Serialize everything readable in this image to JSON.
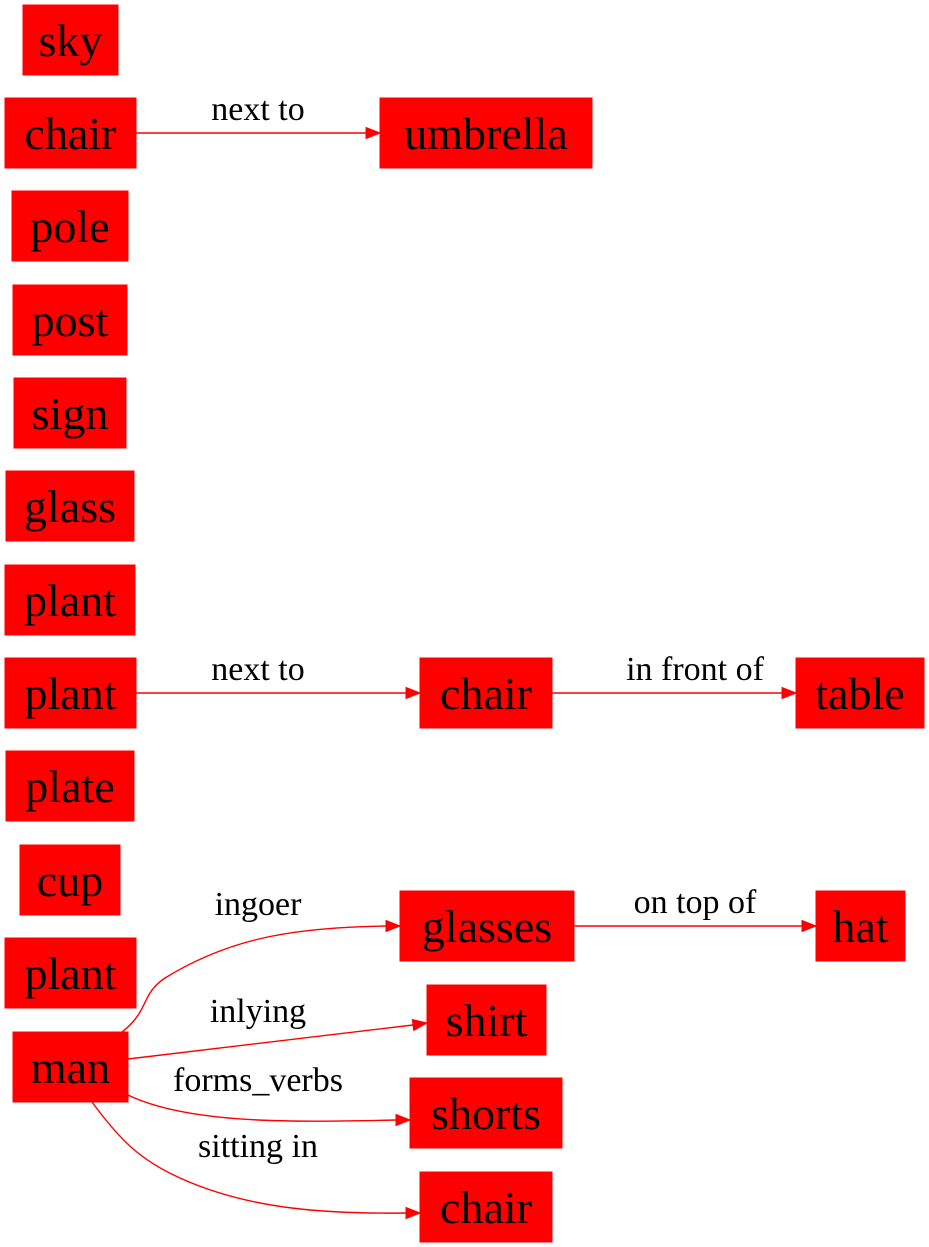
{
  "graph": {
    "nodes": [
      {
        "id": "n0",
        "label": "sky"
      },
      {
        "id": "n1",
        "label": "chair"
      },
      {
        "id": "n2",
        "label": "umbrella"
      },
      {
        "id": "n3",
        "label": "pole"
      },
      {
        "id": "n4",
        "label": "post"
      },
      {
        "id": "n5",
        "label": "sign"
      },
      {
        "id": "n6",
        "label": "glass"
      },
      {
        "id": "n7",
        "label": "plant"
      },
      {
        "id": "n8",
        "label": "plant"
      },
      {
        "id": "n9",
        "label": "chair"
      },
      {
        "id": "n10",
        "label": "table"
      },
      {
        "id": "n11",
        "label": "plate"
      },
      {
        "id": "n12",
        "label": "cup"
      },
      {
        "id": "n13",
        "label": "glasses"
      },
      {
        "id": "n14",
        "label": "hat"
      },
      {
        "id": "n15",
        "label": "plant"
      },
      {
        "id": "n16",
        "label": "shirt"
      },
      {
        "id": "n17",
        "label": "man"
      },
      {
        "id": "n18",
        "label": "shorts"
      },
      {
        "id": "n19",
        "label": "chair"
      }
    ],
    "edges": [
      {
        "id": "e0",
        "from": "n1",
        "to": "n2",
        "label": "next to"
      },
      {
        "id": "e1",
        "from": "n8",
        "to": "n9",
        "label": "next to"
      },
      {
        "id": "e2",
        "from": "n9",
        "to": "n10",
        "label": "in front of"
      },
      {
        "id": "e3",
        "from": "n13",
        "to": "n14",
        "label": "on top of"
      },
      {
        "id": "e4",
        "from": "n17",
        "to": "n13",
        "label": "ingoer"
      },
      {
        "id": "e5",
        "from": "n17",
        "to": "n16",
        "label": "inlying"
      },
      {
        "id": "e6",
        "from": "n17",
        "to": "n18",
        "label": "forms_verbs"
      },
      {
        "id": "e7",
        "from": "n17",
        "to": "n19",
        "label": "sitting in"
      }
    ]
  }
}
